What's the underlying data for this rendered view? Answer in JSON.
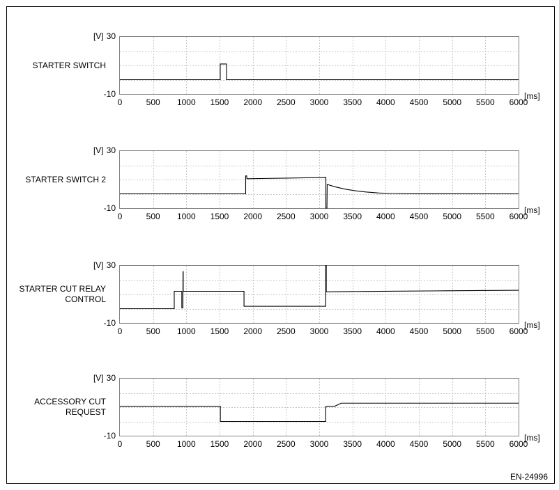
{
  "figure_code": "EN-24996",
  "colors": {
    "background": "#ffffff",
    "frame": "#000000",
    "plot_border": "#808080",
    "grid": "#c8c8c8",
    "signal": "#000000",
    "text": "#000000"
  },
  "axis": {
    "v_unit": "[V]",
    "v_max_label": "30",
    "v_min_label": "-10",
    "ms_unit": "[ms]",
    "x_ticks": [
      0,
      500,
      1000,
      1500,
      2000,
      2500,
      3000,
      3500,
      4000,
      4500,
      5000,
      5500,
      6000
    ],
    "x_range": [
      0,
      6000
    ],
    "y_range": [
      -10,
      30
    ],
    "h_gridline_volts": [
      0,
      10,
      20
    ]
  },
  "chart_data": [
    {
      "type": "line",
      "title": "STARTER SWITCH",
      "title_lines": [
        "STARTER SWITCH"
      ],
      "xlabel": "ms",
      "ylabel": "V",
      "ylim": [
        -10,
        30
      ],
      "xlim": [
        0,
        6000
      ],
      "points": [
        [
          0,
          0
        ],
        [
          1510,
          0
        ],
        [
          1510,
          11
        ],
        [
          1605,
          11
        ],
        [
          1605,
          0
        ],
        [
          6000,
          0
        ]
      ]
    },
    {
      "type": "line",
      "title": "STARTER SWITCH 2",
      "title_lines": [
        "STARTER SWITCH 2"
      ],
      "xlabel": "ms",
      "ylabel": "V",
      "ylim": [
        -10,
        30
      ],
      "xlim": [
        0,
        6000
      ],
      "points": [
        [
          0,
          0
        ],
        [
          1893,
          0
        ],
        [
          1893,
          12.6
        ],
        [
          1908,
          12.6
        ],
        [
          1912,
          10.6
        ],
        [
          2500,
          11
        ],
        [
          3098,
          11.5
        ],
        [
          3100,
          11.5
        ],
        [
          3100,
          -10
        ],
        [
          3116,
          -10
        ],
        [
          3120,
          6.6
        ],
        [
          3250,
          4.8
        ],
        [
          3400,
          3.2
        ],
        [
          3550,
          2.1
        ],
        [
          3700,
          1.3
        ],
        [
          3900,
          0.6
        ],
        [
          4100,
          0.25
        ],
        [
          4400,
          0.05
        ],
        [
          6000,
          0
        ]
      ]
    },
    {
      "type": "line",
      "title": "STARTER CUT RELAY CONTROL",
      "title_lines": [
        "STARTER CUT RELAY",
        "CONTROL"
      ],
      "xlabel": "ms",
      "ylabel": "V",
      "ylim": [
        -10,
        30
      ],
      "xlim": [
        0,
        6000
      ],
      "points": [
        [
          0,
          0
        ],
        [
          818,
          0
        ],
        [
          818,
          12.2
        ],
        [
          932,
          12.2
        ],
        [
          932,
          0.6
        ],
        [
          948,
          0.6
        ],
        [
          950,
          26
        ],
        [
          953,
          26
        ],
        [
          953,
          12.2
        ],
        [
          1868,
          12.2
        ],
        [
          1868,
          1.7
        ],
        [
          3098,
          1.7
        ],
        [
          3098,
          31
        ],
        [
          3106,
          31
        ],
        [
          3106,
          11.8
        ],
        [
          3700,
          12.1
        ],
        [
          4800,
          12.5
        ],
        [
          6000,
          12.9
        ]
      ]
    },
    {
      "type": "line",
      "title": "ACCESSORY CUT REQUEST",
      "title_lines": [
        "ACCESSORY CUT",
        "REQUEST"
      ],
      "xlabel": "ms",
      "ylabel": "V",
      "ylim": [
        -10,
        30
      ],
      "xlim": [
        0,
        6000
      ],
      "points": [
        [
          0,
          10.6
        ],
        [
          1512,
          10.6
        ],
        [
          1512,
          0
        ],
        [
          3098,
          0
        ],
        [
          3098,
          10.6
        ],
        [
          3230,
          10.6
        ],
        [
          3330,
          12.8
        ],
        [
          6000,
          12.8
        ]
      ]
    }
  ]
}
